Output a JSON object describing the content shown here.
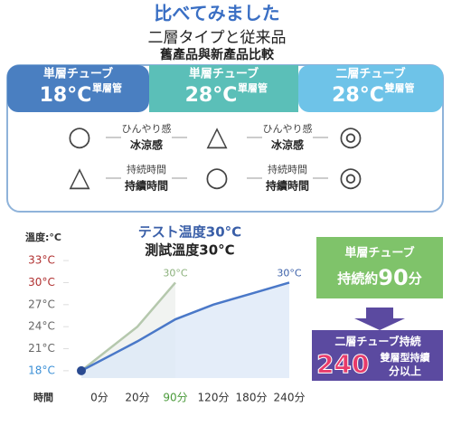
{
  "header": {
    "title": "比べてみました",
    "subtitle": "二層タイプと従来品",
    "subtitle_tw": "舊產品與新產品比較"
  },
  "comparison": {
    "columns": [
      {
        "name": "単層チューブ",
        "temp": "18°C",
        "name_tw": "單層管",
        "color": "#4a7fc1"
      },
      {
        "name": "単層チューブ",
        "temp": "28°C",
        "name_tw": "單層管",
        "color": "#5bbfb8"
      },
      {
        "name": "二層チューブ",
        "temp": "28°C",
        "name_tw": "雙層管",
        "color": "#6ec3e8"
      }
    ],
    "rows": [
      {
        "label": "ひんやり感",
        "label_tw": "冰涼感",
        "ratings": [
          "○",
          "△",
          "◎"
        ]
      },
      {
        "label": "持続時間",
        "label_tw": "持續時間",
        "ratings": [
          "△",
          "○",
          "◎"
        ]
      }
    ]
  },
  "chart_data": {
    "type": "line",
    "title": "テスト温度30°C",
    "subtitle": "測試溫度30°C",
    "ylabel": "溫度:°C",
    "xlabel": "時間",
    "categories": [
      "0分",
      "20分",
      "90分",
      "120分",
      "180分",
      "240分"
    ],
    "category_colors": [
      "#333",
      "#333",
      "#4a9a3a",
      "#333",
      "#333",
      "#333"
    ],
    "ylim": [
      17,
      34
    ],
    "yticks": [
      {
        "value": 18,
        "label": "18°C"
      },
      {
        "value": 21,
        "label": "21°C"
      },
      {
        "value": 24,
        "label": "24°C"
      },
      {
        "value": 27,
        "label": "27°C"
      },
      {
        "value": 30,
        "label": "30°C"
      },
      {
        "value": 33,
        "label": "33°C"
      }
    ],
    "ytick_colors": [
      "#3b8fd6",
      "#666",
      "#666",
      "#666",
      "#b03030",
      "#b03030"
    ],
    "series": [
      {
        "name": "単層チューブ",
        "color": "#b5c8ad",
        "values": [
          18,
          24,
          30,
          null,
          null,
          null
        ]
      },
      {
        "name": "二層チューブ",
        "color": "#4a78c8",
        "values": [
          18,
          22,
          25,
          27,
          28.5,
          30
        ]
      }
    ],
    "annotations": [
      "30°C",
      "30°C"
    ]
  },
  "callouts": {
    "single": {
      "line1": "単層チューブ",
      "line2a": "持続約",
      "line2b": "90",
      "line2c": "分"
    },
    "double": {
      "line1": "二層チューブ持続",
      "big": "240",
      "tw": "雙層型持續",
      "tail": "分以上"
    }
  }
}
